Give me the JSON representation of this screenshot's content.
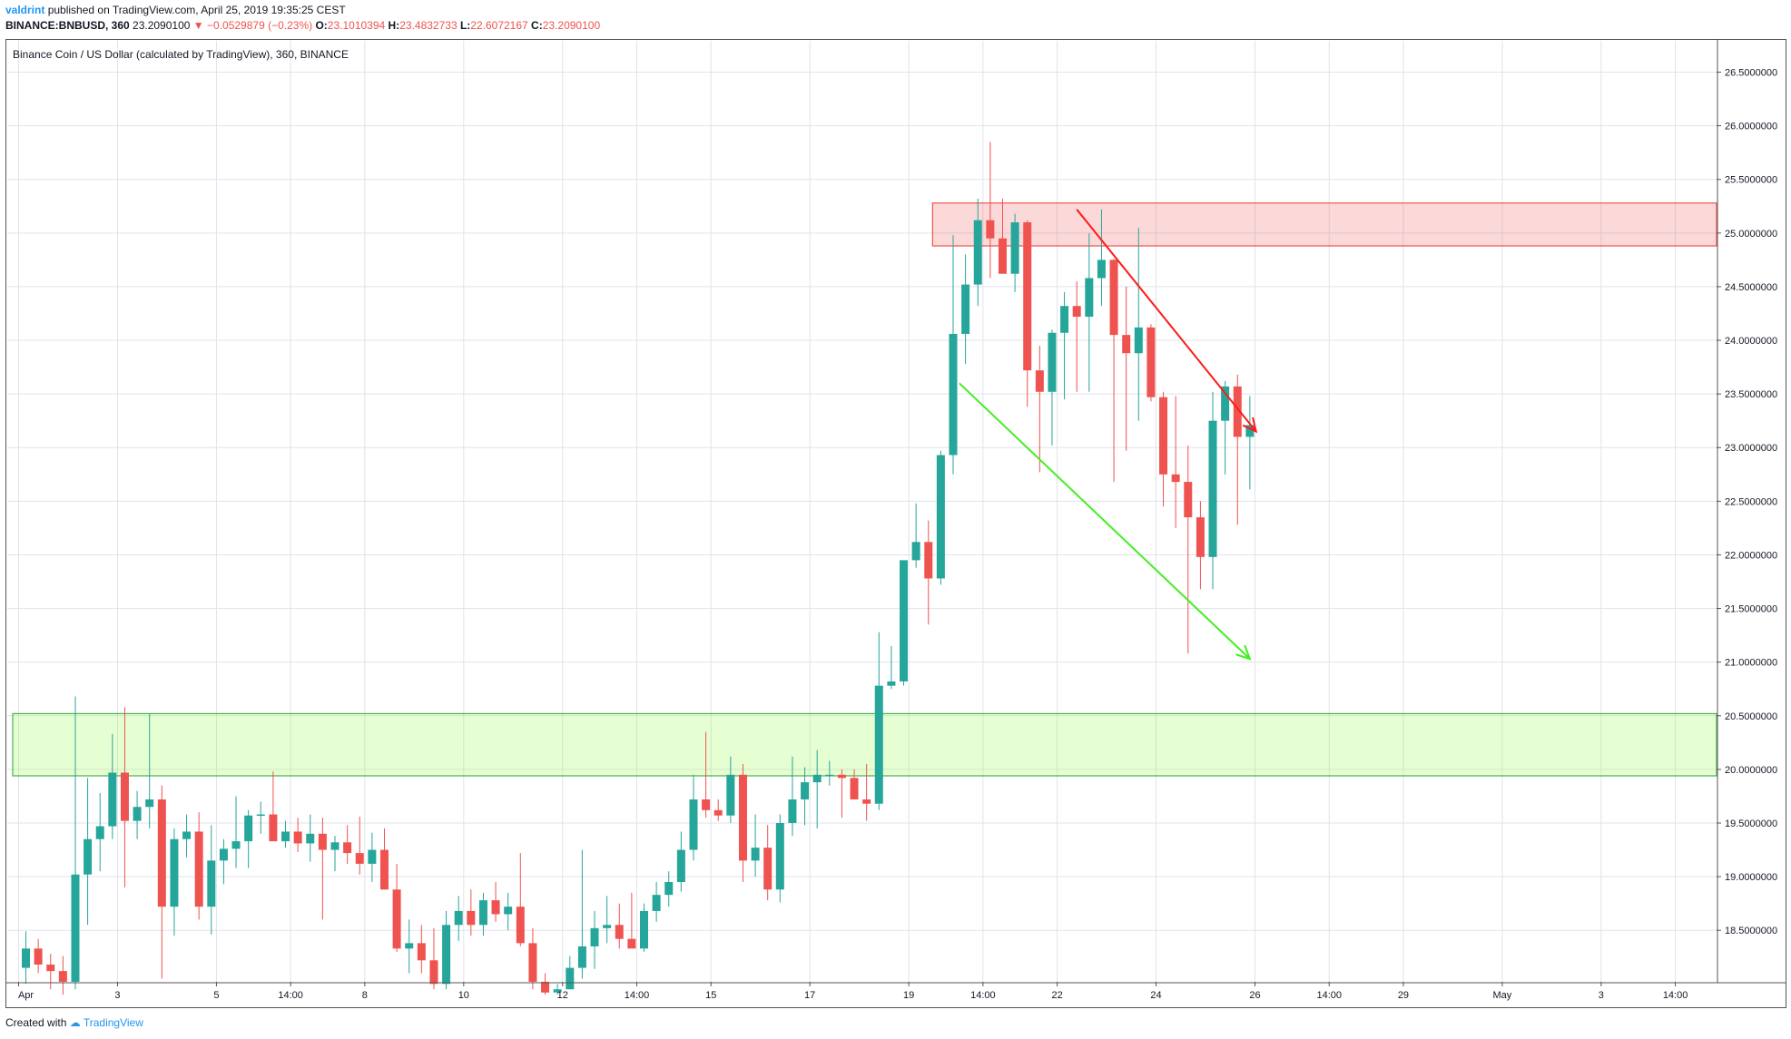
{
  "header": {
    "author": "valdrint",
    "published": "published on TradingView.com, April 25, 2019 19:35:25 CEST",
    "symbol": "BINANCE:BNBUSD, 360",
    "last": "23.2090100",
    "change": "−0.0529879 (−0.23%)",
    "o_label": "O:",
    "o_value": "23.1010394",
    "h_label": "H:",
    "h_value": "23.4832733",
    "l_label": "L:",
    "l_value": "22.6072167",
    "c_label": "C:",
    "c_value": "23.2090100"
  },
  "footer": {
    "created_with": "Created with",
    "brand": "TradingView"
  },
  "colors": {
    "up": "#26a69a",
    "down": "#ef5350",
    "grid": "#e0e3eb",
    "resistance": "#ef5350",
    "support": "#4caf50"
  },
  "chart_data": {
    "type": "candlestick",
    "title": "Binance Coin / US Dollar (calculated by TradingView), 360, BINANCE",
    "ylim": [
      17.9,
      26.8
    ],
    "y_ticks": [
      "26.5000000",
      "26.0000000",
      "25.5000000",
      "25.0000000",
      "24.5000000",
      "24.0000000",
      "23.5000000",
      "23.0000000",
      "22.5000000",
      "22.0000000",
      "21.5000000",
      "21.0000000",
      "20.5000000",
      "20.0000000",
      "19.5000000",
      "19.0000000",
      "18.5000000"
    ],
    "y_tick_values": [
      26.5,
      26.0,
      25.5,
      25.0,
      24.5,
      24.0,
      23.5,
      23.0,
      22.5,
      22.0,
      21.5,
      21.0,
      20.5,
      20.0,
      19.5,
      19.0,
      18.5
    ],
    "x_ticks": [
      {
        "label": "Apr",
        "bar": 0
      },
      {
        "label": "3",
        "bar": 8
      },
      {
        "label": "5",
        "bar": 16
      },
      {
        "label": "14:00",
        "bar": 22
      },
      {
        "label": "8",
        "bar": 28
      },
      {
        "label": "10",
        "bar": 36
      },
      {
        "label": "12",
        "bar": 44
      },
      {
        "label": "14:00",
        "bar": 50
      },
      {
        "label": "15",
        "bar": 56
      },
      {
        "label": "17",
        "bar": 64
      },
      {
        "label": "19",
        "bar": 72
      },
      {
        "label": "14:00",
        "bar": 78
      },
      {
        "label": "22",
        "bar": 84
      },
      {
        "label": "24",
        "bar": 92
      },
      {
        "label": "26",
        "bar": 100
      },
      {
        "label": "14:00",
        "bar": 106
      },
      {
        "label": "29",
        "bar": 112
      },
      {
        "label": "May",
        "bar": 120
      },
      {
        "label": "3",
        "bar": 128
      },
      {
        "label": "14:00",
        "bar": 134
      }
    ],
    "candles": [
      [
        18.15,
        18.49,
        18.0,
        18.33
      ],
      [
        18.33,
        18.42,
        18.1,
        18.18
      ],
      [
        18.18,
        18.28,
        17.95,
        18.12
      ],
      [
        18.12,
        18.26,
        17.9,
        18.02
      ],
      [
        18.02,
        20.68,
        17.95,
        19.02
      ],
      [
        19.02,
        19.92,
        18.55,
        19.35
      ],
      [
        19.35,
        19.78,
        19.05,
        19.47
      ],
      [
        19.47,
        20.33,
        19.35,
        19.97
      ],
      [
        19.97,
        20.58,
        18.9,
        19.52
      ],
      [
        19.52,
        19.8,
        19.35,
        19.65
      ],
      [
        19.65,
        20.52,
        19.45,
        19.72
      ],
      [
        19.72,
        19.85,
        18.05,
        18.72
      ],
      [
        18.72,
        19.45,
        18.45,
        19.35
      ],
      [
        19.35,
        19.58,
        19.18,
        19.42
      ],
      [
        19.42,
        19.6,
        18.6,
        18.72
      ],
      [
        18.72,
        19.48,
        18.46,
        19.15
      ],
      [
        19.15,
        19.35,
        18.93,
        19.26
      ],
      [
        19.26,
        19.75,
        19.08,
        19.33
      ],
      [
        19.33,
        19.62,
        19.08,
        19.57
      ],
      [
        19.57,
        19.7,
        19.4,
        19.58
      ],
      [
        19.58,
        19.98,
        19.38,
        19.33
      ],
      [
        19.33,
        19.52,
        19.27,
        19.42
      ],
      [
        19.42,
        19.55,
        19.23,
        19.31
      ],
      [
        19.31,
        19.58,
        19.14,
        19.4
      ],
      [
        19.4,
        19.55,
        18.6,
        19.25
      ],
      [
        19.25,
        19.38,
        19.05,
        19.32
      ],
      [
        19.32,
        19.48,
        19.12,
        19.22
      ],
      [
        19.22,
        19.56,
        19.02,
        19.12
      ],
      [
        19.12,
        19.41,
        18.95,
        19.25
      ],
      [
        19.25,
        19.45,
        18.88,
        18.88
      ],
      [
        18.88,
        19.12,
        18.3,
        18.33
      ],
      [
        18.33,
        18.6,
        18.1,
        18.38
      ],
      [
        18.38,
        18.55,
        18.1,
        18.22
      ],
      [
        18.22,
        18.52,
        17.95,
        18.0
      ],
      [
        18.0,
        18.68,
        17.95,
        18.55
      ],
      [
        18.55,
        18.82,
        18.4,
        18.68
      ],
      [
        18.68,
        18.88,
        18.45,
        18.55
      ],
      [
        18.55,
        18.85,
        18.45,
        18.78
      ],
      [
        18.78,
        18.95,
        18.58,
        18.65
      ],
      [
        18.65,
        18.85,
        18.5,
        18.72
      ],
      [
        18.72,
        19.22,
        18.35,
        18.38
      ],
      [
        18.38,
        18.52,
        17.95,
        18.02
      ],
      [
        18.02,
        18.1,
        17.9,
        17.92
      ],
      [
        17.92,
        18.0,
        17.9,
        17.95
      ],
      [
        17.95,
        18.26,
        17.95,
        18.15
      ],
      [
        18.15,
        19.25,
        18.05,
        18.35
      ],
      [
        18.35,
        18.68,
        18.14,
        18.52
      ],
      [
        18.52,
        18.82,
        18.38,
        18.55
      ],
      [
        18.55,
        18.75,
        18.33,
        18.42
      ],
      [
        18.42,
        18.85,
        18.35,
        18.33
      ],
      [
        18.33,
        18.75,
        18.3,
        18.68
      ],
      [
        18.68,
        18.95,
        18.58,
        18.83
      ],
      [
        18.83,
        19.05,
        18.72,
        18.95
      ],
      [
        18.95,
        19.42,
        18.86,
        19.25
      ],
      [
        19.25,
        19.95,
        19.15,
        19.72
      ],
      [
        19.72,
        20.35,
        19.55,
        19.62
      ],
      [
        19.62,
        19.72,
        19.52,
        19.57
      ],
      [
        19.57,
        20.12,
        19.5,
        19.95
      ],
      [
        19.95,
        20.05,
        18.95,
        19.15
      ],
      [
        19.15,
        19.58,
        19.0,
        19.27
      ],
      [
        19.27,
        19.48,
        18.78,
        18.88
      ],
      [
        18.88,
        19.58,
        18.76,
        19.5
      ],
      [
        19.5,
        20.12,
        19.38,
        19.72
      ],
      [
        19.72,
        20.02,
        19.48,
        19.88
      ],
      [
        19.88,
        20.18,
        19.45,
        19.95
      ],
      [
        19.95,
        20.08,
        19.85,
        19.95
      ],
      [
        19.95,
        20.0,
        19.55,
        19.92
      ],
      [
        19.92,
        20.0,
        19.75,
        19.72
      ],
      [
        19.72,
        20.05,
        19.52,
        19.68
      ],
      [
        19.68,
        21.28,
        19.62,
        20.78
      ],
      [
        20.78,
        21.15,
        20.75,
        20.82
      ],
      [
        20.82,
        21.92,
        20.78,
        21.95
      ],
      [
        21.95,
        22.48,
        21.88,
        22.12
      ],
      [
        22.12,
        22.32,
        21.35,
        21.78
      ],
      [
        21.78,
        22.97,
        21.72,
        22.93
      ],
      [
        22.93,
        24.98,
        22.75,
        24.06
      ],
      [
        24.06,
        24.8,
        23.78,
        24.52
      ],
      [
        24.52,
        25.32,
        24.32,
        25.12
      ],
      [
        25.12,
        25.85,
        24.58,
        24.95
      ],
      [
        24.95,
        25.32,
        24.65,
        24.62
      ],
      [
        24.62,
        25.18,
        24.45,
        25.1
      ],
      [
        25.1,
        25.12,
        23.38,
        23.72
      ],
      [
        23.72,
        23.95,
        22.77,
        23.52
      ],
      [
        23.52,
        24.1,
        23.02,
        24.07
      ],
      [
        24.07,
        24.45,
        23.45,
        24.32
      ],
      [
        24.32,
        24.55,
        23.52,
        24.22
      ],
      [
        24.22,
        25.0,
        23.52,
        24.58
      ],
      [
        24.58,
        25.22,
        24.32,
        24.75
      ],
      [
        24.75,
        24.76,
        22.68,
        24.05
      ],
      [
        24.05,
        24.5,
        22.97,
        23.88
      ],
      [
        23.88,
        25.05,
        23.25,
        24.12
      ],
      [
        24.12,
        24.15,
        23.43,
        23.47
      ],
      [
        23.47,
        23.52,
        22.45,
        22.75
      ],
      [
        22.75,
        23.48,
        22.25,
        22.68
      ],
      [
        22.68,
        23.02,
        21.08,
        22.35
      ],
      [
        22.35,
        22.5,
        21.68,
        21.98
      ],
      [
        21.98,
        23.52,
        21.68,
        23.25
      ],
      [
        23.25,
        23.62,
        22.75,
        23.57
      ],
      [
        23.57,
        23.68,
        22.28,
        23.1
      ],
      [
        23.1,
        23.48,
        22.61,
        23.21
      ]
    ],
    "resistance_zone": {
      "from_bar": 74,
      "y_low": 24.88,
      "y_high": 25.28
    },
    "support_zone": {
      "from_bar": 0,
      "y_low": 19.94,
      "y_high": 20.52
    },
    "red_arrow": {
      "from": [
        85,
        25.22
      ],
      "to": [
        99.5,
        23.15
      ]
    },
    "green_arrow": {
      "from": [
        75.5,
        23.6
      ],
      "to": [
        99,
        21.03
      ]
    }
  }
}
